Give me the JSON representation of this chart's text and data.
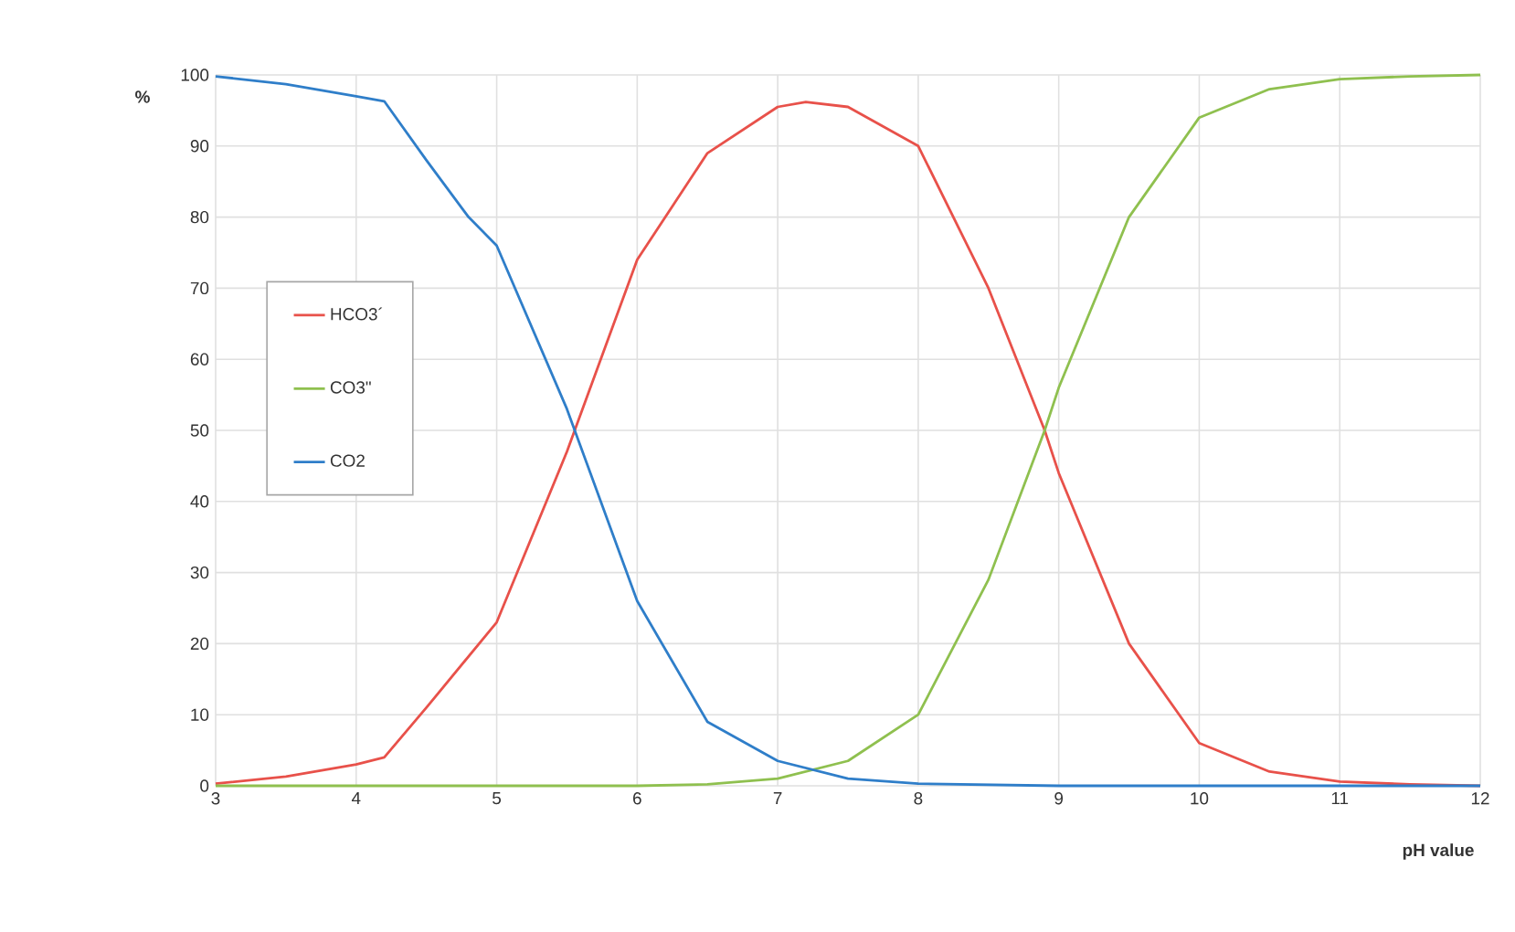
{
  "chart_data": {
    "type": "line",
    "xlabel": "pH value",
    "ylabel": "%",
    "xlim": [
      3,
      12
    ],
    "xticks": [
      3,
      4,
      5,
      6,
      7,
      8,
      9,
      10,
      11,
      12
    ],
    "ylim": [
      0,
      100
    ],
    "yticks": [
      0,
      10,
      20,
      30,
      40,
      50,
      60,
      70,
      80,
      90,
      100
    ],
    "grid": true,
    "legend": "left",
    "marker": "none",
    "line_style": "solid",
    "series": [
      {
        "name": "HCO3´",
        "color": "#e8514a",
        "x": [
          3,
          3.5,
          4,
          4.2,
          4.5,
          5,
          5.5,
          6,
          6.5,
          7,
          7.2,
          7.5,
          8,
          8.5,
          8.9,
          9,
          9.5,
          10,
          10.5,
          11,
          11.5,
          12
        ],
        "values": [
          0.3,
          1.3,
          3,
          4,
          11,
          23,
          47,
          74,
          89,
          95.5,
          96.2,
          95.5,
          90,
          70,
          50,
          44,
          20,
          6,
          2,
          0.6,
          0.2,
          0
        ]
      },
      {
        "name": "CO3\"",
        "color": "#8fc04f",
        "x": [
          3,
          4,
          5,
          6,
          6.5,
          7,
          7.5,
          8,
          8.5,
          8.9,
          9,
          9.5,
          10,
          10.5,
          11,
          11.5,
          12
        ],
        "values": [
          0,
          0,
          0,
          0,
          0.2,
          1,
          3.5,
          10,
          29,
          50,
          56,
          80,
          94,
          98,
          99.4,
          99.8,
          100
        ]
      },
      {
        "name": "CO2",
        "color": "#2f7ec9",
        "x": [
          3,
          3.5,
          4,
          4.2,
          4.5,
          4.8,
          5,
          5.5,
          6,
          6.5,
          7,
          7.5,
          8,
          9,
          10,
          11,
          12
        ],
        "values": [
          99.8,
          98.7,
          97,
          96.3,
          88,
          80,
          76,
          53,
          26,
          9,
          3.5,
          1,
          0.3,
          0,
          0,
          0,
          0
        ]
      }
    ]
  }
}
